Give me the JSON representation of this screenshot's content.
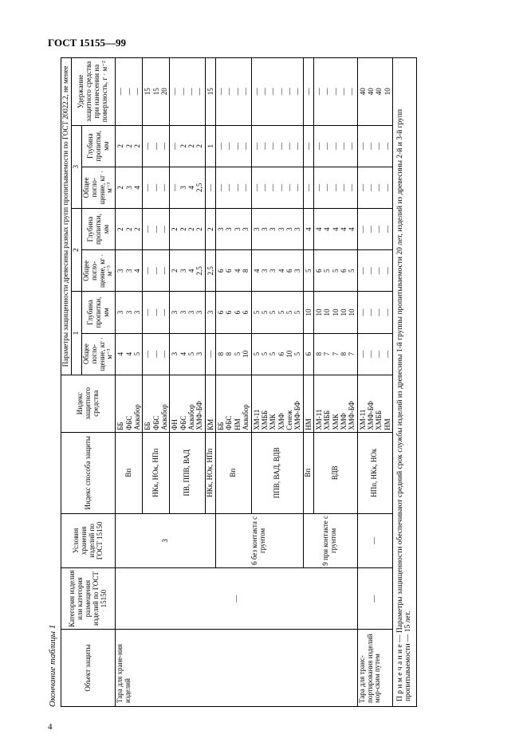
{
  "header_code": "ГОСТ 15155—99",
  "caption": "Окончание таблицы 1",
  "page_number": "4",
  "head": {
    "obj": "Объект защиты",
    "cat": "Категория изделия или категория размещения изделий по ГОСТ 15150",
    "usl": "Условия хранения изделий по ГОСТ 15150",
    "method": "Индекс способа защиты",
    "agent": "Индекс защитного средства",
    "params": "Параметры защищенности древесины разных групп пропитываемости по ГОСТ 20022.2, не менее",
    "g1": "1",
    "g2": "2",
    "g3": "3",
    "pogl": "Общее погло-щение, кг · м⁻³",
    "glub": "Глубина пропитки, мм",
    "uderzh": "Удержание защитного средства при нанесении на поверхность, г · м⁻²"
  },
  "sect1": {
    "obj": "Тара для хране-ния изделий",
    "cat": "—",
    "usl": "3",
    "method": "Вп"
  },
  "r1": {
    "agent": [
      "ББ",
      "ФБС",
      "Аквабор"
    ],
    "p1": [
      "4",
      "4",
      "5"
    ],
    "g1": [
      "3",
      "3",
      "3"
    ],
    "p2": [
      "3",
      "3",
      "4"
    ],
    "g2": [
      "2",
      "2",
      "2"
    ],
    "p3": [
      "2",
      "3",
      "4"
    ],
    "g3": [
      "2",
      "2",
      "2"
    ],
    "u": [
      "—",
      "—",
      "—"
    ]
  },
  "r2": {
    "method": "НКк, НОк, НПп",
    "agent": [
      "ББ",
      "ФБС",
      "Аквабор"
    ],
    "p1": [
      "—",
      "—",
      "—"
    ],
    "g1": [
      "—",
      "—",
      "—"
    ],
    "p2": [
      "—",
      "—",
      "—"
    ],
    "g2": [
      "—",
      "—",
      "—"
    ],
    "p3": [
      "—",
      "—",
      "—"
    ],
    "g3": [
      "—",
      "—",
      "—"
    ],
    "u": [
      "15",
      "15",
      "20"
    ]
  },
  "r3": {
    "method": "ПВ, ППВ, ВАД",
    "agent": [
      "ФН",
      "ФБС",
      "Аквабор",
      "ХМФ-БФ"
    ],
    "p1": [
      "3",
      "4",
      "5",
      "3"
    ],
    "g1": [
      "3",
      "3",
      "3",
      "3"
    ],
    "p2": [
      "2",
      "3",
      "4",
      "2,5"
    ],
    "g2": [
      "2",
      "2",
      "2",
      "2"
    ],
    "p3": [
      "—",
      "3",
      "4",
      "2,5"
    ],
    "g3": [
      "—",
      "2",
      "2",
      "2"
    ],
    "u": [
      "—",
      "—",
      "—",
      "—"
    ]
  },
  "r4": {
    "method": "НКк, НОк, НПп",
    "agent": [
      "КМ"
    ],
    "p1": [
      "—"
    ],
    "g1": [
      "3"
    ],
    "p2": [
      "2,5"
    ],
    "g2": [
      "2"
    ],
    "p3": [
      "—"
    ],
    "g3": [
      "1"
    ],
    "u": [
      "15"
    ]
  },
  "sect2": {
    "usl": "6 без контакта с грунтом",
    "method": "Вп"
  },
  "r5": {
    "agent": [
      "ББ",
      "ФБС",
      "НМ",
      "Аквабор"
    ],
    "p1": [
      "8",
      "8",
      "5",
      "10"
    ],
    "g1": [
      "6",
      "6",
      "6",
      "6"
    ],
    "p2": [
      "6",
      "6",
      "4",
      "8"
    ],
    "g2": [
      "3",
      "3",
      "3",
      "3"
    ],
    "p3": [
      "—",
      "—",
      "—",
      "—"
    ],
    "g3": [
      "—",
      "—",
      "—",
      "—"
    ],
    "u": [
      "—",
      "—",
      "—",
      "—"
    ]
  },
  "r6": {
    "method": "ППВ, ВАД, ВДВ",
    "agent": [
      "ХМ-11",
      "ХМББ",
      "ХМК",
      "ХМФ",
      "Сенеж",
      "ХМФ-БФ"
    ],
    "p1": [
      "5",
      "5",
      "5",
      "6",
      "10",
      "5"
    ],
    "g1": [
      "5",
      "5",
      "5",
      "5",
      "5",
      "5"
    ],
    "p2": [
      "4",
      "3",
      "3",
      "4",
      "6",
      "3"
    ],
    "g2": [
      "3",
      "3",
      "3",
      "3",
      "3",
      "3"
    ],
    "p3": [
      "—",
      "—",
      "—",
      "—",
      "—",
      "—"
    ],
    "g3": [
      "—",
      "—",
      "—",
      "—",
      "—",
      "—"
    ],
    "u": [
      "—",
      "—",
      "—",
      "—",
      "—",
      "—"
    ]
  },
  "sect3": {
    "usl": "9 при контакте с грунтом",
    "method": "Вп"
  },
  "r7": {
    "agent": [
      "НМ"
    ],
    "p1": [
      "6"
    ],
    "g1": [
      "10"
    ],
    "p2": [
      "5"
    ],
    "g2": [
      "4"
    ],
    "p3": [
      "—"
    ],
    "g3": [
      "—"
    ],
    "u": [
      "—"
    ]
  },
  "r8": {
    "method": "ВДВ",
    "agent": [
      "ХМ-11",
      "ХМББ",
      "ХМК",
      "ХМФ",
      "ХМФ-БФ"
    ],
    "p1": [
      "8",
      "7",
      "7",
      "8",
      "7"
    ],
    "g1": [
      "10",
      "10",
      "10",
      "10",
      "10"
    ],
    "p2": [
      "6",
      "5",
      "5",
      "6",
      "5"
    ],
    "g2": [
      "4",
      "4",
      "4",
      "4",
      "4"
    ],
    "p3": [
      "—",
      "—",
      "—",
      "—",
      "—"
    ],
    "g3": [
      "—",
      "—",
      "—",
      "—",
      "—"
    ],
    "u": [
      "—",
      "—",
      "—",
      "—",
      "—"
    ]
  },
  "sect4": {
    "obj": "Тара для транс-портирования изделий мор-ским путем",
    "cat": "—",
    "usl": "—",
    "method": "НПп, НКк, НОк"
  },
  "r9": {
    "agent": [
      "ХМ-11",
      "ХМФ-БФ",
      "ХМББ",
      "НМ"
    ],
    "p1": [
      "—",
      "—",
      "—",
      "—"
    ],
    "g1": [
      "—",
      "—",
      "—",
      "—"
    ],
    "p2": [
      "—",
      "—",
      "—",
      "—"
    ],
    "g2": [
      "—",
      "—",
      "—",
      "—"
    ],
    "p3": [
      "—",
      "—",
      "—",
      "—"
    ],
    "g3": [
      "—",
      "—",
      "—",
      "—"
    ],
    "u": [
      "40",
      "40",
      "40",
      "10"
    ]
  },
  "note": "П р и м е ч а н и е — Параметры защищенности обеспечивают средний срок службы изделий из древесины 1-й группы пропитываемости 20 лет, изделий из древесины 2-й и 3-й групп пропитываемости — 15 лет."
}
